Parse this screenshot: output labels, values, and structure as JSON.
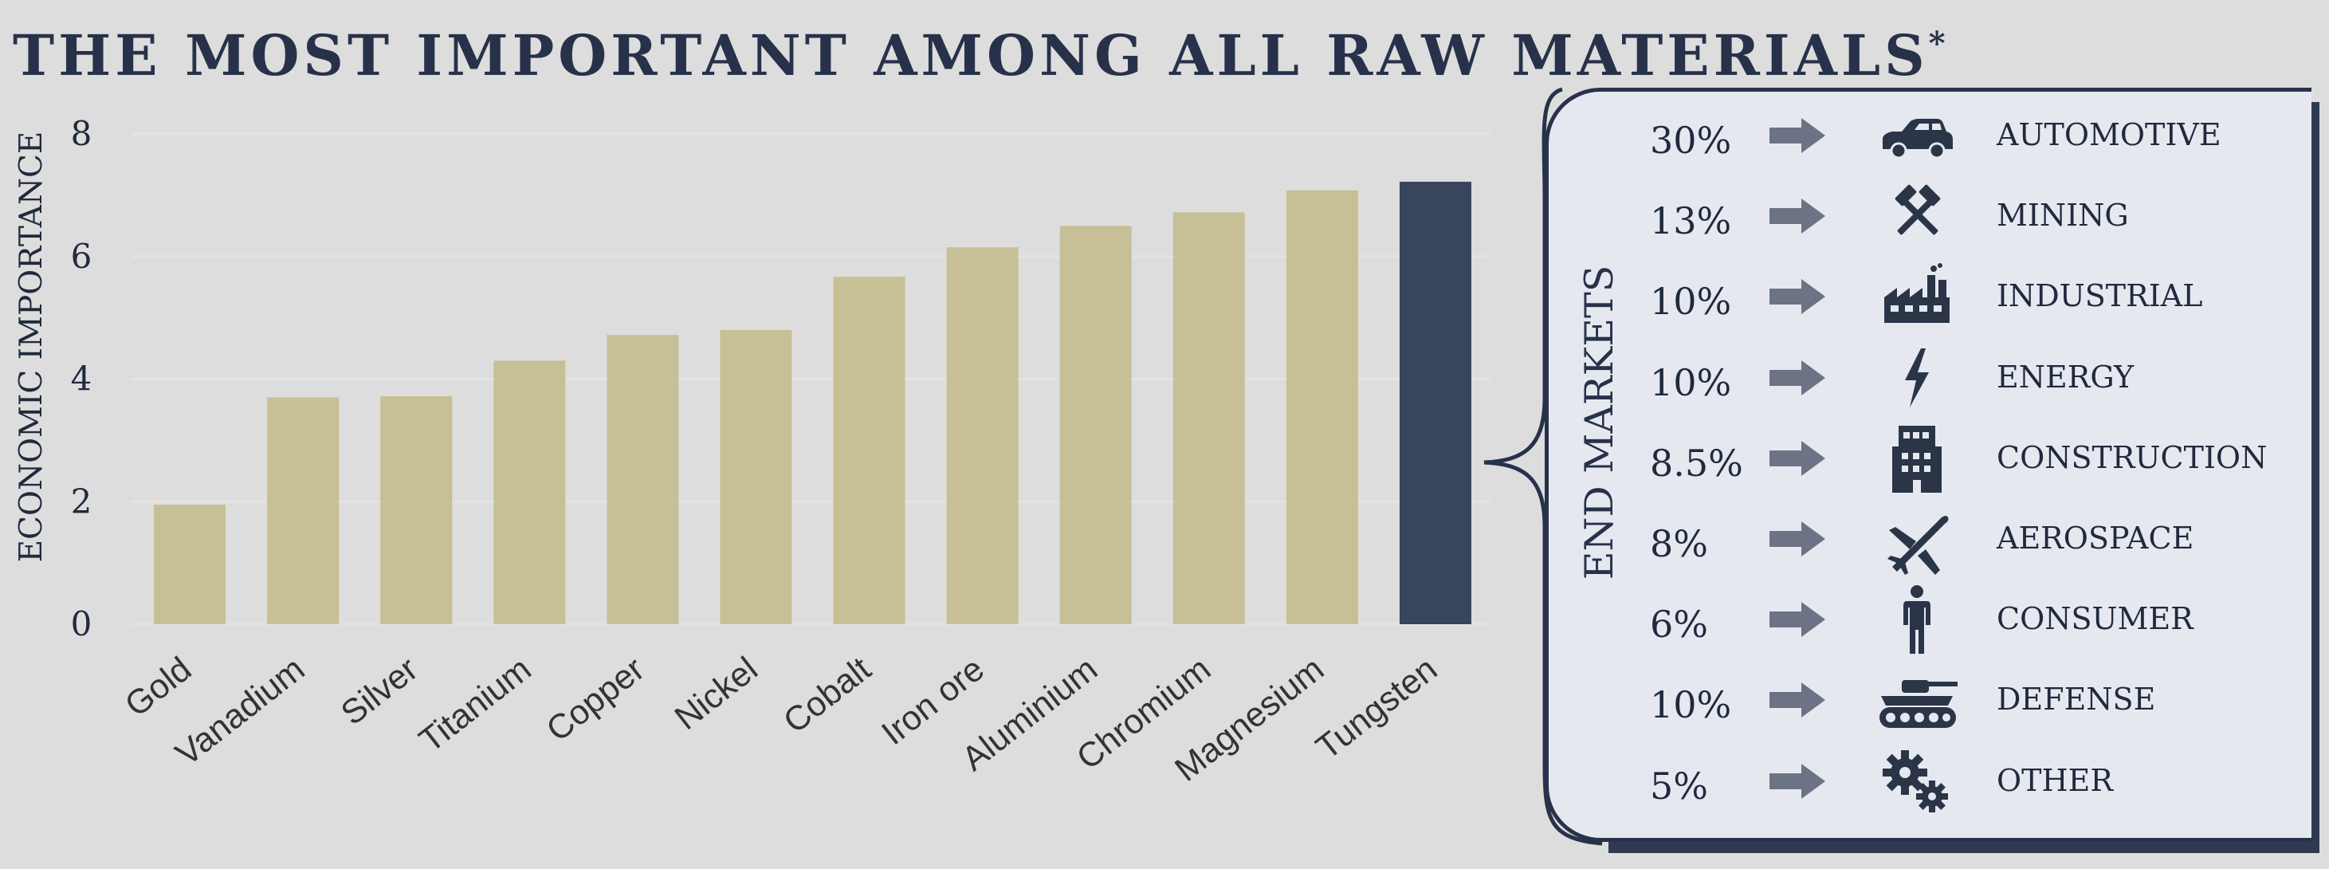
{
  "title": {
    "text": "THE MOST IMPORTANT AMONG ALL RAW MATERIALS",
    "marker": "*"
  },
  "chart_data": {
    "type": "bar",
    "title": "THE MOST IMPORTANT AMONG ALL RAW MATERIALS*",
    "xlabel": "",
    "ylabel": "ECONOMIC IMPORTANCE",
    "ylim": [
      0,
      8
    ],
    "yticks": [
      "0",
      "2",
      "4",
      "6",
      "8"
    ],
    "grid": true,
    "categories": [
      "Gold",
      "Vanadium",
      "Silver",
      "Titanium",
      "Copper",
      "Nickel",
      "Cobalt",
      "Iron ore",
      "Aluminium",
      "Chromium",
      "Magnesium",
      "Tungsten"
    ],
    "values": [
      1.95,
      3.7,
      3.72,
      4.3,
      4.72,
      4.8,
      5.67,
      6.15,
      6.5,
      6.72,
      7.08,
      7.22
    ],
    "highlight": "Tungsten",
    "colors": {
      "bar": "#c7bf95",
      "highlight": "#39455d",
      "grid": "#e5e4e4"
    }
  },
  "end_markets": {
    "title": "END MARKETS",
    "items": [
      {
        "percent": "30%",
        "label": "AUTOMOTIVE",
        "icon": "car-icon"
      },
      {
        "percent": "13%",
        "label": "MINING",
        "icon": "crossed-hammers-icon"
      },
      {
        "percent": "10%",
        "label": "INDUSTRIAL",
        "icon": "factory-icon"
      },
      {
        "percent": "10%",
        "label": "ENERGY",
        "icon": "lightning-bolt-icon"
      },
      {
        "percent": "8.5%",
        "label": "CONSTRUCTION",
        "icon": "building-icon"
      },
      {
        "percent": "8%",
        "label": "AEROSPACE",
        "icon": "airplane-icon"
      },
      {
        "percent": "6%",
        "label": "CONSUMER",
        "icon": "person-icon"
      },
      {
        "percent": "10%",
        "label": "DEFENSE",
        "icon": "tank-icon"
      },
      {
        "percent": "5%",
        "label": "OTHER",
        "icon": "gears-icon"
      }
    ],
    "arrow_color": "#6b7385",
    "icon_color": "#2b3548"
  }
}
